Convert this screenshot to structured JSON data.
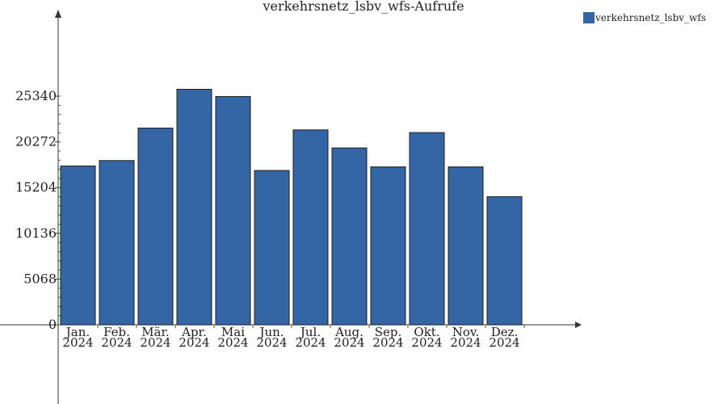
{
  "chart_data": {
    "type": "bar",
    "title": "verkehrsnetz_lsbv_wfs-Aufrufe",
    "categories": [
      [
        "Jan.",
        "2024"
      ],
      [
        "Feb.",
        "2024"
      ],
      [
        "Mär.",
        "2024"
      ],
      [
        "Apr.",
        "2024"
      ],
      [
        "Mai",
        "2024"
      ],
      [
        "Jun.",
        "2024"
      ],
      [
        "Jul.",
        "2024"
      ],
      [
        "Aug.",
        "2024"
      ],
      [
        "Sep.",
        "2024"
      ],
      [
        "Okt.",
        "2024"
      ],
      [
        "Nov.",
        "2024"
      ],
      [
        "Dez.",
        "2024"
      ]
    ],
    "series": [
      {
        "name": "verkehrsnetz_lsbv_wfs",
        "color": "#3465a4",
        "values": [
          17600,
          18200,
          21800,
          26100,
          25300,
          17100,
          21600,
          19600,
          17500,
          21300,
          17500,
          14200
        ]
      }
    ],
    "yticks": [
      0,
      5068,
      10136,
      15204,
      20272,
      25340
    ],
    "ylim": [
      0,
      25340
    ],
    "xlabel": "",
    "ylabel": "",
    "legend_position": "top-right",
    "grid": false
  }
}
